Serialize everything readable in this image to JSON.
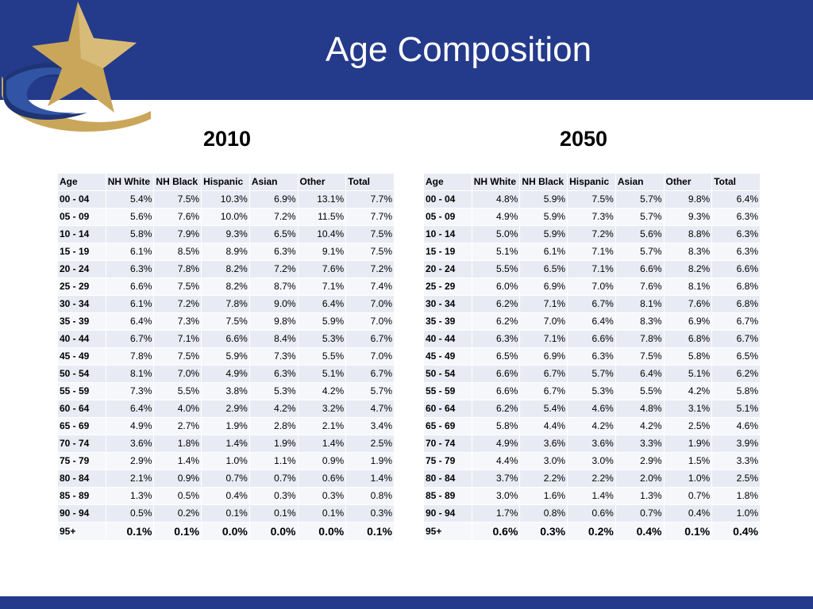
{
  "title": "Age Composition",
  "colors": {
    "band": "#243a8a",
    "star": "#c9a65a",
    "cell": "#e9ebf4",
    "cell_alt": "#f6f7fb"
  },
  "tables": [
    {
      "year": "2010",
      "headers": [
        "Age",
        "NH White",
        "NH Black",
        "Hispanic",
        "Asian",
        "Other",
        "Total"
      ],
      "rows": [
        [
          "00 - 04",
          "5.4%",
          "7.5%",
          "10.3%",
          "6.9%",
          "13.1%",
          "7.7%"
        ],
        [
          "05 - 09",
          "5.6%",
          "7.6%",
          "10.0%",
          "7.2%",
          "11.5%",
          "7.7%"
        ],
        [
          "10 - 14",
          "5.8%",
          "7.9%",
          "9.3%",
          "6.5%",
          "10.4%",
          "7.5%"
        ],
        [
          "15 - 19",
          "6.1%",
          "8.5%",
          "8.9%",
          "6.3%",
          "9.1%",
          "7.5%"
        ],
        [
          "20 - 24",
          "6.3%",
          "7.8%",
          "8.2%",
          "7.2%",
          "7.6%",
          "7.2%"
        ],
        [
          "25 - 29",
          "6.6%",
          "7.5%",
          "8.2%",
          "8.7%",
          "7.1%",
          "7.4%"
        ],
        [
          "30 - 34",
          "6.1%",
          "7.2%",
          "7.8%",
          "9.0%",
          "6.4%",
          "7.0%"
        ],
        [
          "35 - 39",
          "6.4%",
          "7.3%",
          "7.5%",
          "9.8%",
          "5.9%",
          "7.0%"
        ],
        [
          "40 - 44",
          "6.7%",
          "7.1%",
          "6.6%",
          "8.4%",
          "5.3%",
          "6.7%"
        ],
        [
          "45 - 49",
          "7.8%",
          "7.5%",
          "5.9%",
          "7.3%",
          "5.5%",
          "7.0%"
        ],
        [
          "50 - 54",
          "8.1%",
          "7.0%",
          "4.9%",
          "6.3%",
          "5.1%",
          "6.7%"
        ],
        [
          "55 - 59",
          "7.3%",
          "5.5%",
          "3.8%",
          "5.3%",
          "4.2%",
          "5.7%"
        ],
        [
          "60 - 64",
          "6.4%",
          "4.0%",
          "2.9%",
          "4.2%",
          "3.2%",
          "4.7%"
        ],
        [
          "65 - 69",
          "4.9%",
          "2.7%",
          "1.9%",
          "2.8%",
          "2.1%",
          "3.4%"
        ],
        [
          "70 - 74",
          "3.6%",
          "1.8%",
          "1.4%",
          "1.9%",
          "1.4%",
          "2.5%"
        ],
        [
          "75 - 79",
          "2.9%",
          "1.4%",
          "1.0%",
          "1.1%",
          "0.9%",
          "1.9%"
        ],
        [
          "80 - 84",
          "2.1%",
          "0.9%",
          "0.7%",
          "0.7%",
          "0.6%",
          "1.4%"
        ],
        [
          "85 - 89",
          "1.3%",
          "0.5%",
          "0.4%",
          "0.3%",
          "0.3%",
          "0.8%"
        ],
        [
          "90 - 94",
          "0.5%",
          "0.2%",
          "0.1%",
          "0.1%",
          "0.1%",
          "0.3%"
        ],
        [
          "95+",
          "0.1%",
          "0.1%",
          "0.0%",
          "0.0%",
          "0.0%",
          "0.1%"
        ]
      ]
    },
    {
      "year": "2050",
      "headers": [
        "Age",
        "NH White",
        "NH Black",
        "Hispanic",
        "Asian",
        "Other",
        "Total"
      ],
      "rows": [
        [
          "00 - 04",
          "4.8%",
          "5.9%",
          "7.5%",
          "5.7%",
          "9.8%",
          "6.4%"
        ],
        [
          "05 - 09",
          "4.9%",
          "5.9%",
          "7.3%",
          "5.7%",
          "9.3%",
          "6.3%"
        ],
        [
          "10 - 14",
          "5.0%",
          "5.9%",
          "7.2%",
          "5.6%",
          "8.8%",
          "6.3%"
        ],
        [
          "15 - 19",
          "5.1%",
          "6.1%",
          "7.1%",
          "5.7%",
          "8.3%",
          "6.3%"
        ],
        [
          "20 - 24",
          "5.5%",
          "6.5%",
          "7.1%",
          "6.6%",
          "8.2%",
          "6.6%"
        ],
        [
          "25 - 29",
          "6.0%",
          "6.9%",
          "7.0%",
          "7.6%",
          "8.1%",
          "6.8%"
        ],
        [
          "30 - 34",
          "6.2%",
          "7.1%",
          "6.7%",
          "8.1%",
          "7.6%",
          "6.8%"
        ],
        [
          "35 - 39",
          "6.2%",
          "7.0%",
          "6.4%",
          "8.3%",
          "6.9%",
          "6.7%"
        ],
        [
          "40 - 44",
          "6.3%",
          "7.1%",
          "6.6%",
          "7.8%",
          "6.8%",
          "6.7%"
        ],
        [
          "45 - 49",
          "6.5%",
          "6.9%",
          "6.3%",
          "7.5%",
          "5.8%",
          "6.5%"
        ],
        [
          "50 - 54",
          "6.6%",
          "6.7%",
          "5.7%",
          "6.4%",
          "5.1%",
          "6.2%"
        ],
        [
          "55 - 59",
          "6.6%",
          "6.7%",
          "5.3%",
          "5.5%",
          "4.2%",
          "5.8%"
        ],
        [
          "60 - 64",
          "6.2%",
          "5.4%",
          "4.6%",
          "4.8%",
          "3.1%",
          "5.1%"
        ],
        [
          "65 - 69",
          "5.8%",
          "4.4%",
          "4.2%",
          "4.2%",
          "2.5%",
          "4.6%"
        ],
        [
          "70 - 74",
          "4.9%",
          "3.6%",
          "3.6%",
          "3.3%",
          "1.9%",
          "3.9%"
        ],
        [
          "75 - 79",
          "4.4%",
          "3.0%",
          "3.0%",
          "2.9%",
          "1.5%",
          "3.3%"
        ],
        [
          "80 - 84",
          "3.7%",
          "2.2%",
          "2.2%",
          "2.0%",
          "1.0%",
          "2.5%"
        ],
        [
          "85 - 89",
          "3.0%",
          "1.6%",
          "1.4%",
          "1.3%",
          "0.7%",
          "1.8%"
        ],
        [
          "90 - 94",
          "1.7%",
          "0.8%",
          "0.6%",
          "0.7%",
          "0.4%",
          "1.0%"
        ],
        [
          "95+",
          "0.6%",
          "0.3%",
          "0.2%",
          "0.4%",
          "0.1%",
          "0.4%"
        ]
      ]
    }
  ]
}
